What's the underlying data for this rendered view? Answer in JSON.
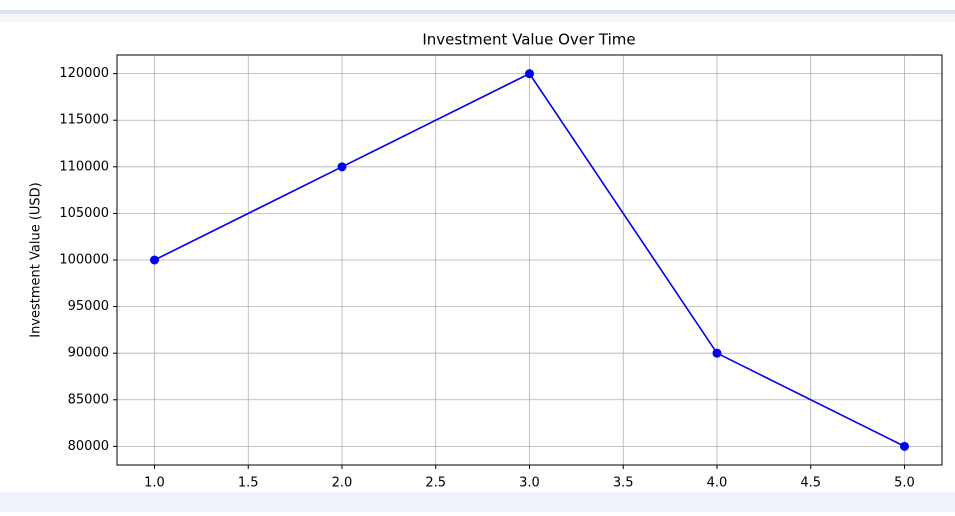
{
  "chart_data": {
    "type": "line",
    "title": "Investment Value Over Time",
    "y_label": "Investment Value (USD)",
    "x": [
      1,
      2,
      3,
      4,
      5
    ],
    "series": [
      {
        "name": "Investment Value",
        "color": "#0000ee",
        "values": [
          100000,
          110000,
          120000,
          90000,
          80000
        ]
      }
    ],
    "xlim": [
      0.8,
      5.2
    ],
    "xticks": [
      {
        "value": 1,
        "label": "1.0"
      },
      {
        "value": 1.5,
        "label": "1.5"
      },
      {
        "value": 2,
        "label": "2.0"
      },
      {
        "value": 2.5,
        "label": "2.5"
      },
      {
        "value": 3,
        "label": "3.0"
      },
      {
        "value": 3.5,
        "label": "3.5"
      },
      {
        "value": 4,
        "label": "4.0"
      },
      {
        "value": 4.5,
        "label": "4.5"
      },
      {
        "value": 5,
        "label": "5.0"
      }
    ],
    "ylim": [
      78000,
      122000
    ],
    "yticks": [
      80000,
      85000,
      90000,
      95000,
      100000,
      105000,
      110000,
      115000,
      120000
    ],
    "grid": true
  }
}
